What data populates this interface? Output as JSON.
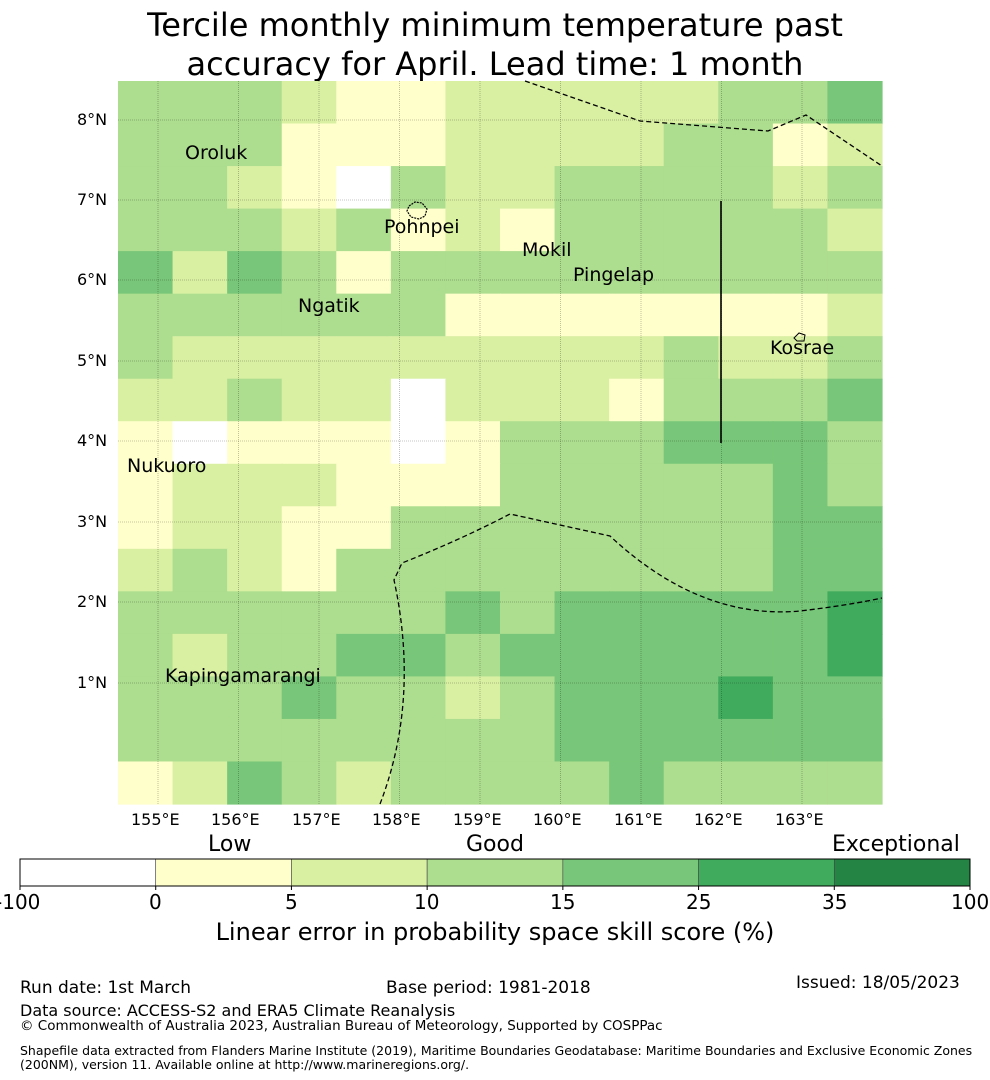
{
  "title": {
    "line1": "Tercile monthly minimum temperature past",
    "line2": "accuracy for April. Lead time: 1 month"
  },
  "map": {
    "lon_ticks": [
      "155°E",
      "156°E",
      "157°E",
      "158°E",
      "159°E",
      "160°E",
      "161°E",
      "162°E",
      "163°E"
    ],
    "lat_ticks": [
      "8°N",
      "7°N",
      "6°N",
      "5°N",
      "4°N",
      "3°N",
      "2°N",
      "1°N"
    ],
    "places": [
      "Oroluk",
      "Pohnpei",
      "Mokil",
      "Pingelap",
      "Ngatik",
      "Kosrae",
      "Nukuoro",
      "Kapingamarangi"
    ],
    "grid_levels": [
      [
        3,
        3,
        3,
        2,
        1,
        1,
        2,
        2,
        2,
        2,
        2,
        3,
        3,
        4
      ],
      [
        3,
        3,
        3,
        1,
        1,
        1,
        2,
        2,
        2,
        2,
        3,
        3,
        1,
        2
      ],
      [
        3,
        3,
        2,
        1,
        0,
        3,
        2,
        2,
        3,
        3,
        3,
        3,
        2,
        3
      ],
      [
        3,
        3,
        3,
        2,
        3,
        1,
        2,
        1,
        3,
        3,
        3,
        3,
        3,
        2
      ],
      [
        4,
        2,
        4,
        3,
        1,
        3,
        3,
        3,
        3,
        3,
        3,
        3,
        3,
        3
      ],
      [
        3,
        3,
        3,
        3,
        3,
        3,
        1,
        1,
        1,
        1,
        1,
        1,
        1,
        2
      ],
      [
        3,
        2,
        2,
        2,
        2,
        2,
        2,
        2,
        2,
        2,
        3,
        2,
        2,
        3
      ],
      [
        2,
        2,
        3,
        2,
        2,
        0,
        2,
        2,
        2,
        1,
        3,
        3,
        3,
        4
      ],
      [
        1,
        0,
        1,
        1,
        1,
        0,
        1,
        3,
        3,
        3,
        4,
        4,
        4,
        3
      ],
      [
        1,
        2,
        2,
        2,
        1,
        1,
        1,
        3,
        3,
        3,
        3,
        3,
        4,
        3
      ],
      [
        1,
        2,
        2,
        1,
        1,
        3,
        3,
        3,
        3,
        3,
        3,
        3,
        4,
        4
      ],
      [
        2,
        3,
        2,
        1,
        3,
        3,
        3,
        3,
        3,
        3,
        3,
        3,
        4,
        4
      ],
      [
        3,
        3,
        3,
        3,
        3,
        3,
        4,
        3,
        4,
        4,
        4,
        4,
        4,
        5
      ],
      [
        3,
        2,
        3,
        3,
        4,
        4,
        3,
        4,
        4,
        4,
        4,
        4,
        4,
        5
      ],
      [
        3,
        3,
        3,
        4,
        3,
        3,
        2,
        3,
        4,
        4,
        4,
        5,
        4,
        4
      ],
      [
        3,
        3,
        3,
        3,
        3,
        3,
        3,
        3,
        4,
        4,
        4,
        4,
        4,
        4
      ],
      [
        1,
        2,
        4,
        3,
        2,
        3,
        3,
        3,
        3,
        4,
        3,
        3,
        3,
        3
      ]
    ]
  },
  "legend": {
    "colors": [
      "#ffffff",
      "#ffffcc",
      "#d9f0a3",
      "#addd8e",
      "#78c679",
      "#41ab5d",
      "#238443"
    ],
    "tick_labels": [
      "-100",
      "0",
      "5",
      "10",
      "15",
      "25",
      "35",
      "100"
    ],
    "category_low": "Low",
    "category_good": "Good",
    "category_exceptional": "Exceptional",
    "axis_label": "Linear error in probability space skill score (%)"
  },
  "footer": {
    "run_date": "Run date: 1st March",
    "base_period": "Base period: 1981-2018",
    "issued": "Issued: 18/05/2023",
    "data_source": "Data source: ACCESS-S2 and ERA5 Climate Reanalysis",
    "copyright": "© Commonwealth of Australia 2023, Australian Bureau of Meteorology, Supported by COSPPac",
    "shapefile_line1": "Shapefile data extracted from Flanders Marine Institute (2019), Maritime Boundaries Geodatabase: Maritime Boundaries and Exclusive Economic Zones",
    "shapefile_line2": "(200NM), version 11. Available online at http://www.marineregions.org/."
  }
}
